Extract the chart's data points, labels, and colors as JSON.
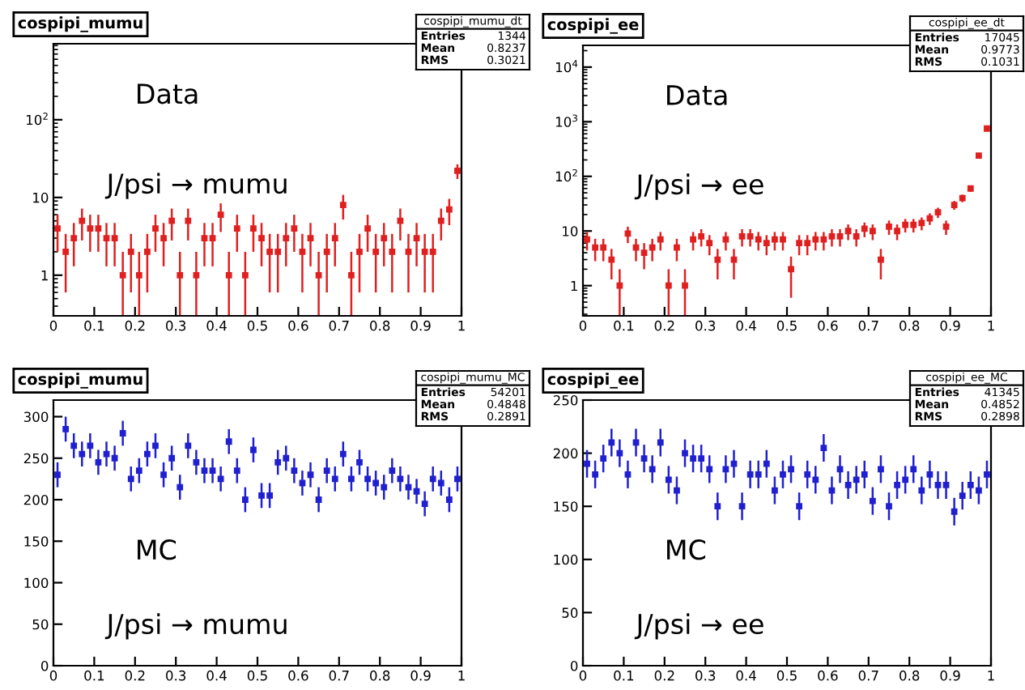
{
  "chart_data": [
    {
      "type": "scatter",
      "title": "cospipi_mumu",
      "log": "y",
      "marker": "square",
      "grid": false,
      "annotations": [
        "Data",
        "J/psi → mumu",
        "cospipi_mumu_dt",
        "Entries",
        "1344",
        "Mean",
        "0.8237",
        "RMS",
        "0.3021"
      ],
      "xlim": [
        0,
        1
      ],
      "xticks": [
        0,
        0.1,
        0.2,
        0.3,
        0.4,
        0.5,
        0.6,
        0.7,
        0.8,
        0.9,
        1
      ],
      "ylim": [
        0.3,
        950
      ],
      "yticks": [
        1,
        10,
        {
          "value": 100,
          "label": "10$^{2}$"
        }
      ],
      "series": [
        {
          "color": "#e02020",
          "x": [
            0.01,
            0.03,
            0.05,
            0.07,
            0.09,
            0.11,
            0.13,
            0.15,
            0.17,
            0.19,
            0.21,
            0.23,
            0.25,
            0.27,
            0.29,
            0.31,
            0.33,
            0.35,
            0.37,
            0.39,
            0.41,
            0.43,
            0.45,
            0.47,
            0.49,
            0.51,
            0.53,
            0.55,
            0.57,
            0.59,
            0.61,
            0.63,
            0.65,
            0.67,
            0.69,
            0.71,
            0.73,
            0.75,
            0.77,
            0.79,
            0.81,
            0.83,
            0.85,
            0.87,
            0.89,
            0.91,
            0.93,
            0.95,
            0.97,
            0.99
          ],
          "values": [
            4,
            2,
            3,
            5,
            4,
            4,
            3,
            3,
            1,
            2,
            1,
            2,
            4,
            3,
            5,
            1,
            5,
            1,
            3,
            3,
            6,
            1,
            4,
            1,
            4,
            3,
            2,
            2,
            3,
            4,
            2,
            3,
            1,
            2,
            3,
            8,
            1,
            2,
            4,
            2,
            3,
            2,
            5,
            2,
            3,
            2,
            2,
            5,
            7,
            22
          ],
          "errors": [
            2,
            1.4,
            1.7,
            2.2,
            2,
            2,
            1.7,
            1.7,
            [
              0.3,
              2
            ],
            1.4,
            [
              0.3,
              2
            ],
            1.4,
            2,
            1.7,
            2.2,
            [
              0.3,
              2
            ],
            2.2,
            [
              0.3,
              2
            ],
            1.7,
            1.7,
            2.4,
            [
              0.3,
              2
            ],
            2,
            [
              0.3,
              2
            ],
            2,
            1.7,
            1.4,
            1.4,
            1.7,
            2,
            1.4,
            1.7,
            [
              0.3,
              2
            ],
            1.4,
            1.7,
            2.8,
            [
              0.3,
              2
            ],
            1.4,
            2,
            1.4,
            1.7,
            1.4,
            2.2,
            1.4,
            1.7,
            1.4,
            1.4,
            2.2,
            2.6,
            4.7
          ]
        }
      ]
    },
    {
      "type": "scatter",
      "title": "cospipi_ee",
      "log": "y",
      "marker": "square",
      "grid": false,
      "annotations": [
        "Data",
        "J/psi → ee",
        "cospipi_ee_dt",
        "Entries",
        "17045",
        "Mean",
        "0.9773",
        "RMS",
        "0.1031"
      ],
      "xlim": [
        0,
        1
      ],
      "xticks": [
        0,
        0.1,
        0.2,
        0.3,
        0.4,
        0.5,
        0.6,
        0.7,
        0.8,
        0.9,
        1
      ],
      "ylim": [
        0.28,
        25000
      ],
      "yticks": [
        1,
        10,
        {
          "value": 100,
          "label": "10$^{2}$"
        },
        {
          "value": 1000,
          "label": "10$^{3}$"
        },
        {
          "value": 10000,
          "label": "10$^{4}$"
        }
      ],
      "series": [
        {
          "color": "#e02020",
          "x": [
            0.01,
            0.03,
            0.05,
            0.07,
            0.09,
            0.11,
            0.13,
            0.15,
            0.17,
            0.19,
            0.21,
            0.23,
            0.25,
            0.27,
            0.29,
            0.31,
            0.33,
            0.35,
            0.37,
            0.39,
            0.41,
            0.43,
            0.45,
            0.47,
            0.49,
            0.51,
            0.53,
            0.55,
            0.57,
            0.59,
            0.61,
            0.63,
            0.65,
            0.67,
            0.69,
            0.71,
            0.73,
            0.75,
            0.77,
            0.79,
            0.81,
            0.83,
            0.85,
            0.87,
            0.89,
            0.91,
            0.93,
            0.95,
            0.97,
            0.99
          ],
          "values": [
            7,
            5,
            5,
            3,
            1,
            9,
            5,
            4,
            5,
            7,
            1,
            5,
            1,
            7,
            8,
            6,
            3,
            7,
            3,
            8,
            8,
            7,
            6,
            7,
            7,
            2,
            6,
            6,
            7,
            7,
            8,
            8,
            10,
            8,
            11,
            10,
            3,
            12,
            10,
            13,
            13,
            14,
            17,
            22,
            12,
            30,
            40,
            60,
            240,
            750
          ],
          "errors": [
            2.6,
            2.2,
            2.2,
            1.7,
            [
              0.28,
              2
            ],
            3,
            2.2,
            2,
            2.2,
            2.6,
            [
              0.28,
              2
            ],
            2.2,
            [
              0.28,
              2
            ],
            2.6,
            2.8,
            2.4,
            1.7,
            2.6,
            1.7,
            2.8,
            2.8,
            2.6,
            2.4,
            2.6,
            2.6,
            1.4,
            2.4,
            2.4,
            2.6,
            2.6,
            2.8,
            2.8,
            3.2,
            2.8,
            3.3,
            3.2,
            1.7,
            3.5,
            3.2,
            3.6,
            3.6,
            3.7,
            4.1,
            4.7,
            3.5,
            5.5,
            6.3,
            7.7,
            15.5,
            27.4
          ]
        }
      ]
    },
    {
      "type": "scatter",
      "title": "cospipi_mumu",
      "marker": "square",
      "grid": false,
      "annotations": [
        "MC",
        "J/psi → mumu",
        "cospipi_mumu_MC",
        "Entries",
        "54201",
        "Mean",
        "0.4848",
        "RMS",
        "0.2891"
      ],
      "xlim": [
        0,
        1
      ],
      "xticks": [
        0,
        0.1,
        0.2,
        0.3,
        0.4,
        0.5,
        0.6,
        0.7,
        0.8,
        0.9,
        1
      ],
      "ylim": [
        0,
        320
      ],
      "yticks": [
        0,
        50,
        100,
        150,
        200,
        250,
        300
      ],
      "series": [
        {
          "color": "#2020d0",
          "x": [
            0.01,
            0.03,
            0.05,
            0.07,
            0.09,
            0.11,
            0.13,
            0.15,
            0.17,
            0.19,
            0.21,
            0.23,
            0.25,
            0.27,
            0.29,
            0.31,
            0.33,
            0.35,
            0.37,
            0.39,
            0.41,
            0.43,
            0.45,
            0.47,
            0.49,
            0.51,
            0.53,
            0.55,
            0.57,
            0.59,
            0.61,
            0.63,
            0.65,
            0.67,
            0.69,
            0.71,
            0.73,
            0.75,
            0.77,
            0.79,
            0.81,
            0.83,
            0.85,
            0.87,
            0.89,
            0.91,
            0.93,
            0.95,
            0.97,
            0.99
          ],
          "values": [
            230,
            285,
            265,
            255,
            265,
            245,
            255,
            250,
            280,
            225,
            235,
            255,
            265,
            230,
            250,
            215,
            265,
            245,
            235,
            235,
            225,
            270,
            235,
            200,
            260,
            205,
            205,
            245,
            250,
            235,
            220,
            230,
            200,
            235,
            225,
            255,
            225,
            245,
            225,
            220,
            215,
            235,
            225,
            215,
            210,
            195,
            225,
            220,
            200,
            225
          ],
          "errors": [
            15,
            15,
            15,
            15,
            15,
            15,
            15,
            15,
            15,
            15,
            15,
            15,
            15,
            15,
            15,
            15,
            15,
            15,
            15,
            15,
            15,
            15,
            15,
            15,
            15,
            15,
            15,
            15,
            15,
            15,
            15,
            15,
            15,
            15,
            15,
            15,
            15,
            15,
            15,
            15,
            15,
            15,
            15,
            15,
            15,
            15,
            15,
            15,
            15,
            15
          ]
        }
      ]
    },
    {
      "type": "scatter",
      "title": "cospipi_ee",
      "marker": "square",
      "grid": false,
      "annotations": [
        "MC",
        "J/psi → ee",
        "cospipi_ee_MC",
        "Entries",
        "41345",
        "Mean",
        "0.4852",
        "RMS",
        "0.2898"
      ],
      "xlim": [
        0,
        1
      ],
      "xticks": [
        0,
        0.1,
        0.2,
        0.3,
        0.4,
        0.5,
        0.6,
        0.7,
        0.8,
        0.9,
        1
      ],
      "ylim": [
        0,
        250
      ],
      "yticks": [
        0,
        50,
        100,
        150,
        200,
        250
      ],
      "series": [
        {
          "color": "#2020d0",
          "x": [
            0.01,
            0.03,
            0.05,
            0.07,
            0.09,
            0.11,
            0.13,
            0.15,
            0.17,
            0.19,
            0.21,
            0.23,
            0.25,
            0.27,
            0.29,
            0.31,
            0.33,
            0.35,
            0.37,
            0.39,
            0.41,
            0.43,
            0.45,
            0.47,
            0.49,
            0.51,
            0.53,
            0.55,
            0.57,
            0.59,
            0.61,
            0.63,
            0.65,
            0.67,
            0.69,
            0.71,
            0.73,
            0.75,
            0.77,
            0.79,
            0.81,
            0.83,
            0.85,
            0.87,
            0.89,
            0.91,
            0.93,
            0.95,
            0.97,
            0.99
          ],
          "values": [
            190,
            180,
            195,
            210,
            200,
            180,
            210,
            195,
            185,
            210,
            175,
            165,
            200,
            195,
            195,
            185,
            150,
            185,
            190,
            150,
            180,
            180,
            190,
            165,
            180,
            185,
            150,
            180,
            175,
            205,
            165,
            185,
            170,
            175,
            180,
            155,
            185,
            150,
            170,
            175,
            185,
            165,
            180,
            170,
            170,
            145,
            160,
            170,
            165,
            180
          ],
          "errors": [
            13,
            13,
            13,
            13,
            13,
            13,
            13,
            13,
            13,
            13,
            13,
            13,
            13,
            13,
            13,
            13,
            13,
            13,
            13,
            13,
            13,
            13,
            13,
            13,
            13,
            13,
            13,
            13,
            13,
            13,
            13,
            13,
            13,
            13,
            13,
            13,
            13,
            13,
            13,
            13,
            13,
            13,
            13,
            13,
            13,
            13,
            13,
            13,
            13,
            13
          ]
        }
      ]
    }
  ]
}
